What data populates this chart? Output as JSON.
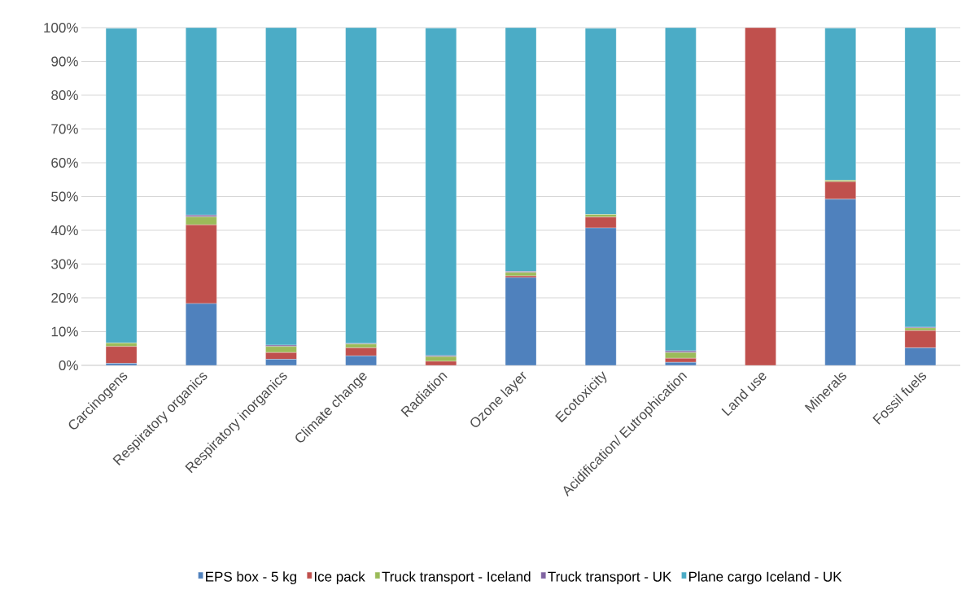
{
  "chart_data": {
    "type": "bar",
    "stacked": true,
    "categories": [
      "Carcinogens",
      "Respiratory organics",
      "Respiratory inorganics",
      "Climate change",
      "Radiation",
      "Ozone layer",
      "Ecotoxicity",
      "Acidification/ Eutrophication",
      "Land use",
      "Minerals",
      "Fossil fuels"
    ],
    "series": [
      {
        "name": "EPS box - 5 kg",
        "color": "#4f81bd",
        "values": [
          0.6,
          18.3,
          1.8,
          2.8,
          null,
          26.0,
          40.7,
          0.9,
          0,
          49.2,
          5.2
        ]
      },
      {
        "name": "Ice pack",
        "color": "#c0504d",
        "values": [
          5.0,
          23.3,
          2.0,
          2.4,
          1.2,
          0.5,
          3.2,
          1.2,
          100,
          5.2,
          5.1
        ]
      },
      {
        "name": "Truck transport - Iceland",
        "color": "#9bbb59",
        "values": [
          1.0,
          2.4,
          1.8,
          1.1,
          1.4,
          1.0,
          0.8,
          1.7,
          0,
          0.4,
          0.8
        ]
      },
      {
        "name": "Truck transport - UK",
        "color": "#8064a2",
        "values": [
          null,
          0.5,
          0.4,
          0.2,
          0.3,
          0.3,
          null,
          0.5,
          0,
          null,
          0.2
        ]
      },
      {
        "name": "Plane cargo Iceland - UK",
        "color": "#4bacc6",
        "values": [
          93.2,
          55.5,
          94.0,
          93.5,
          97.0,
          72.2,
          55.1,
          95.7,
          0,
          45.1,
          88.7
        ]
      }
    ],
    "ylim": [
      0,
      100
    ],
    "yticks": [
      {
        "value": 0,
        "label": "0%"
      },
      {
        "value": 10,
        "label": "10%"
      },
      {
        "value": 20,
        "label": "20%"
      },
      {
        "value": 30,
        "label": "30%"
      },
      {
        "value": 40,
        "label": "40%"
      },
      {
        "value": 50,
        "label": "50%"
      },
      {
        "value": 60,
        "label": "60%"
      },
      {
        "value": 70,
        "label": "70%"
      },
      {
        "value": 80,
        "label": "80%"
      },
      {
        "value": 90,
        "label": "90%"
      },
      {
        "value": 100,
        "label": "100%"
      }
    ],
    "grid": "y",
    "legend": "bottom"
  }
}
